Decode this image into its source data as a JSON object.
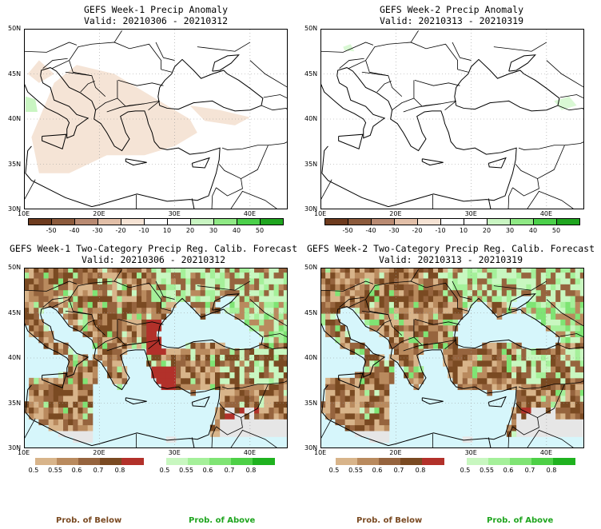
{
  "panels": [
    {
      "id": "w1-anom",
      "title": "GEFS Week-1 Precip Anomaly",
      "valid": "Valid: 20210306 - 20210312"
    },
    {
      "id": "w2-anom",
      "title": "GEFS Week-2 Precip Anomaly",
      "valid": "Valid: 20210313 - 20210319"
    },
    {
      "id": "w1-prob",
      "title": "GEFS Week-1 Two-Category Precip Reg. Calib. Forecast",
      "valid": "Valid: 20210306 - 20210312"
    },
    {
      "id": "w2-prob",
      "title": "GEFS Week-2 Two-Category Precip Reg. Calib. Forecast",
      "valid": "Valid: 20210313 - 20210319"
    }
  ],
  "axes": {
    "lat_labels": [
      "50N",
      "45N",
      "40N",
      "35N",
      "30N"
    ],
    "lon_labels": [
      "10E",
      "20E",
      "30E",
      "40E"
    ]
  },
  "anomaly_legend": {
    "labels": [
      "-50",
      "-40",
      "-30",
      "-20",
      "-10",
      "10",
      "20",
      "30",
      "40",
      "50"
    ],
    "colors": [
      "#6e3b1e",
      "#8c5a3c",
      "#b98a72",
      "#e2bfa8",
      "#f6e3d4",
      "#ffffff",
      "#ffffff",
      "#c9f5c2",
      "#8fe985",
      "#4bd04a",
      "#1fa51f"
    ]
  },
  "prob_legend": {
    "below_labels": [
      "0.5",
      "0.55",
      "0.6",
      "0.7",
      "0.8"
    ],
    "below_colors": [
      "#d8b48a",
      "#b98a5e",
      "#96643e",
      "#7a4a22",
      "#b2312a"
    ],
    "above_labels": [
      "0.5",
      "0.55",
      "0.6",
      "0.7",
      "0.8"
    ],
    "above_colors": [
      "#c8f7c0",
      "#a5f09a",
      "#7fe474",
      "#4dd046",
      "#1fb21f"
    ],
    "below_title": "Prob. of Below",
    "above_title": "Prob. of Above"
  },
  "colors": {
    "sea": "#d6f6fb",
    "nodata": "#e6e6e6",
    "land_blank": "#ffffff"
  }
}
